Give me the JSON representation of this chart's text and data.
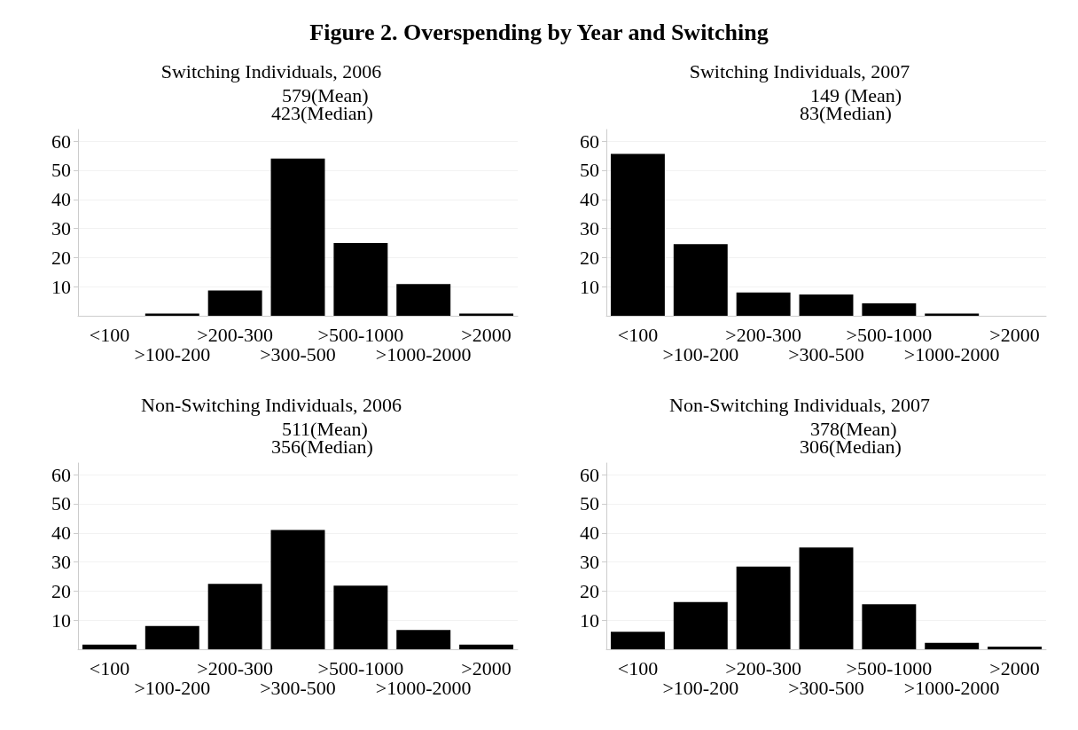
{
  "chart_data": [
    {
      "type": "other",
      "title": "Figure 2. Overspending by Year and Switching"
    },
    {
      "type": "bar",
      "title": "Switching Individuals, 2006",
      "annotations": [
        "579(Mean)",
        "423(Median)"
      ],
      "categories": [
        "<100",
        ">100-200",
        ">200-300",
        ">300-500",
        ">500-1000",
        ">1000-2000",
        ">2000"
      ],
      "values": [
        0,
        0.8,
        8.7,
        54,
        25,
        10.9,
        0.8
      ],
      "color": "#000000",
      "ylim": [
        0,
        64
      ],
      "yticks": [
        10,
        20,
        30,
        40,
        50,
        60
      ],
      "grid": "y"
    },
    {
      "type": "bar",
      "title": "Switching Individuals, 2007",
      "annotations": [
        "149 (Mean)",
        "83(Median)"
      ],
      "categories": [
        "<100",
        ">100-200",
        ">200-300",
        ">300-500",
        ">500-1000",
        ">1000-2000",
        ">2000"
      ],
      "values": [
        55.6,
        24.6,
        8,
        7.3,
        4.3,
        0.8,
        0
      ],
      "color": "#000000",
      "ylim": [
        0,
        64
      ],
      "yticks": [
        10,
        20,
        30,
        40,
        50,
        60
      ],
      "grid": "y"
    },
    {
      "type": "bar",
      "title": "Non-Switching Individuals, 2006",
      "annotations": [
        "511(Mean)",
        "356(Median)"
      ],
      "categories": [
        "<100",
        ">100-200",
        ">200-300",
        ">300-500",
        ">500-1000",
        ">1000-2000",
        ">2000"
      ],
      "values": [
        1.6,
        8,
        22.5,
        41,
        21.9,
        6.6,
        1.6
      ],
      "color": "#000000",
      "ylim": [
        0,
        64
      ],
      "yticks": [
        10,
        20,
        30,
        40,
        50,
        60
      ],
      "grid": "y"
    },
    {
      "type": "bar",
      "title": "Non-Switching Individuals, 2007",
      "annotations": [
        "378(Mean)",
        "306(Median)"
      ],
      "categories": [
        "<100",
        ">100-200",
        ">200-300",
        ">300-500",
        ">500-1000",
        ">1000-2000",
        ">2000"
      ],
      "values": [
        6,
        16.2,
        28.4,
        35,
        15.5,
        2.2,
        0.9
      ],
      "color": "#000000",
      "ylim": [
        0,
        64
      ],
      "yticks": [
        10,
        20,
        30,
        40,
        50,
        60
      ],
      "grid": "y"
    }
  ]
}
